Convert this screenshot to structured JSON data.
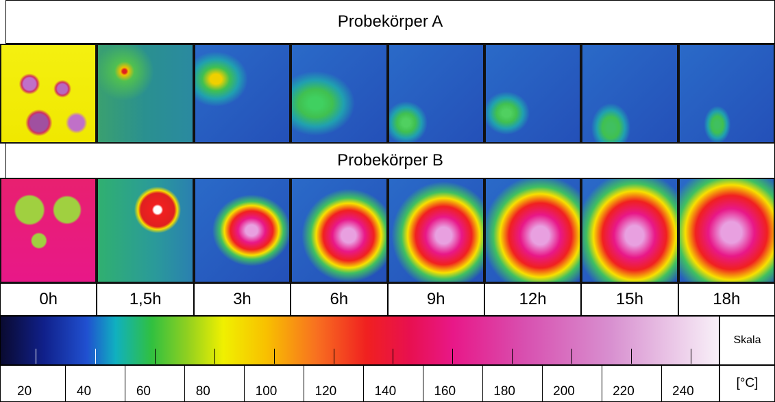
{
  "panels": {
    "specimen_a": "Probekörper A",
    "specimen_b": "Probekörper B"
  },
  "times": [
    "0h",
    "1,5h",
    "3h",
    "6h",
    "9h",
    "12h",
    "15h",
    "18h"
  ],
  "scale": {
    "label": "Skala",
    "unit": "[°C]",
    "ticks": [
      20,
      40,
      60,
      80,
      100,
      120,
      140,
      160,
      180,
      200,
      220,
      240
    ]
  }
}
